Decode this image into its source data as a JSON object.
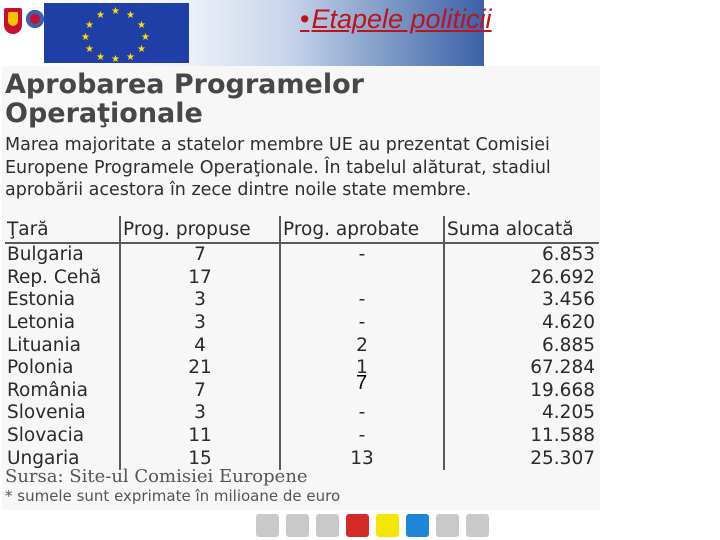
{
  "header": {
    "title": "Etapele politicii"
  },
  "article": {
    "heading": "Aprobarea Programelor Operaţionale",
    "intro": "Marea majoritate a statelor membre UE au prezentat Comisiei Europene Programele Operaţionale. În tabelul alăturat, stadiul aprobării acestora în zece dintre noile state membre.",
    "columns": [
      "Ţară",
      "Prog. propuse",
      "Prog. aprobate",
      "Suma alocată"
    ],
    "rows": [
      {
        "country": "Bulgaria",
        "proposed": "7",
        "approved": "-",
        "amount": "6.853"
      },
      {
        "country": "Rep. Cehă",
        "proposed": "17",
        "approved": "",
        "amount": "26.692"
      },
      {
        "country": "Estonia",
        "proposed": "3",
        "approved": "-",
        "amount": "3.456"
      },
      {
        "country": "Letonia",
        "proposed": "3",
        "approved": "-",
        "amount": "4.620"
      },
      {
        "country": "Lituania",
        "proposed": "4",
        "approved": "2",
        "amount": "6.885"
      },
      {
        "country": "Polonia",
        "proposed": "21",
        "approved": "1",
        "amount": "67.284"
      },
      {
        "country": "România",
        "proposed": "7",
        "approved": "",
        "amount": "19.668"
      },
      {
        "country": "Slovenia",
        "proposed": "3",
        "approved": "-",
        "amount": "4.205"
      },
      {
        "country": "Slovacia",
        "proposed": "11",
        "approved": "-",
        "amount": "11.588"
      },
      {
        "country": "Ungaria",
        "proposed": "15",
        "approved": "13",
        "amount": "25.307"
      }
    ],
    "source": "Sursa: Site-ul Comisiei Europene",
    "note": "* sumele sunt exprimate în milioane de euro"
  },
  "overlay_text": "7",
  "footer_squares": [
    {
      "color": "#c9c9c9"
    },
    {
      "color": "#c9c9c9"
    },
    {
      "color": "#c9c9c9"
    },
    {
      "color": "#d42a2a"
    },
    {
      "color": "#f5e600"
    },
    {
      "color": "#1e86d6"
    },
    {
      "color": "#c9c9c9"
    },
    {
      "color": "#c9c9c9"
    }
  ]
}
